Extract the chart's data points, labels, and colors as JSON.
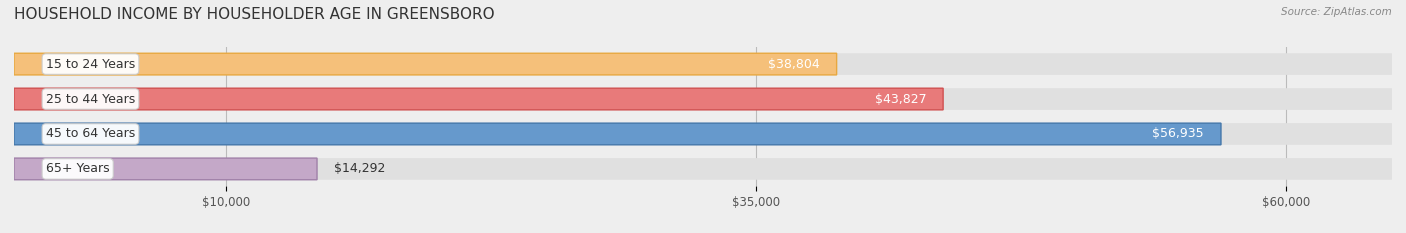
{
  "title": "HOUSEHOLD INCOME BY HOUSEHOLDER AGE IN GREENSBORO",
  "source": "Source: ZipAtlas.com",
  "categories": [
    "15 to 24 Years",
    "25 to 44 Years",
    "45 to 64 Years",
    "65+ Years"
  ],
  "values": [
    38804,
    43827,
    56935,
    14292
  ],
  "bar_colors": [
    "#F5C07A",
    "#E87A7A",
    "#6699CC",
    "#C4A8C8"
  ],
  "bar_edge_colors": [
    "#E8A840",
    "#D05050",
    "#4477AA",
    "#A080A8"
  ],
  "x_ticks": [
    10000,
    35000,
    60000
  ],
  "x_tick_labels": [
    "$10,000",
    "$35,000",
    "$60,000"
  ],
  "xlim": [
    0,
    65000
  ],
  "bg_color": "#eeeeee",
  "bar_bg_color": "#e0e0e0",
  "title_fontsize": 11,
  "label_fontsize": 9,
  "value_fontsize": 9
}
